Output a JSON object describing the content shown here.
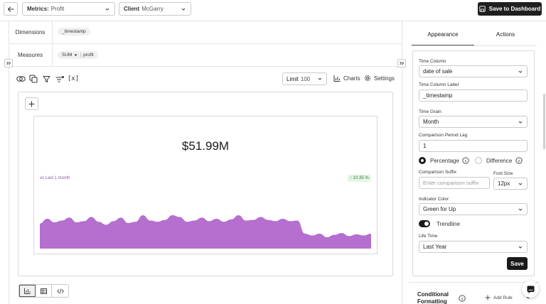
{
  "topbar": {
    "metrics_label": "Metrics:",
    "metrics_value": "Profit",
    "client_label": "Client",
    "client_value": "McGarry",
    "save_dashboard": "Save to Dashboard"
  },
  "query": {
    "dimensions_label": "Dimensions",
    "dimension_chip": "_timestamp",
    "measures_label": "Measures",
    "measure_agg": "SUM",
    "measure_field": "profit"
  },
  "toolbar": {
    "limit_label": "Limit",
    "limit_value": "100",
    "charts_label": "Charts",
    "settings_label": "Settings",
    "variable_icon_text": "[x]"
  },
  "kpi": {
    "value": "$51.99M",
    "comparison_text": "vs Last 1 month",
    "change_text": "10.35 %",
    "trend_color": "#b56fcf",
    "trendline": [
      0.42,
      0.5,
      0.44,
      0.47,
      0.52,
      0.44,
      0.46,
      0.53,
      0.45,
      0.4,
      0.46,
      0.52,
      0.43,
      0.45,
      0.56,
      0.47,
      0.45,
      0.48,
      0.56,
      0.53,
      0.45,
      0.47,
      0.52,
      0.46,
      0.5,
      0.45,
      0.49,
      0.56,
      0.47,
      0.48,
      0.53,
      0.48,
      0.46,
      0.5,
      0.46,
      0.47,
      0.25,
      0.22,
      0.25,
      0.19,
      0.23,
      0.26,
      0.21,
      0.24,
      0.22,
      0.25
    ]
  },
  "panel": {
    "tab_appearance": "Appearance",
    "tab_actions": "Actions",
    "time_column_label": "Time Column",
    "time_column_value": "date of sale",
    "time_column_label_label": "Time Column Label",
    "time_column_label_value": "_timestamp",
    "time_grain_label": "Time Grain",
    "time_grain_value": "Month",
    "comparison_lag_label": "Comparison Period Lag",
    "comparison_lag_value": "1",
    "radio_percentage": "Percentage",
    "radio_difference": "Difference",
    "comparison_suffix_label": "Comparison Suffix",
    "comparison_suffix_placeholder": "Enter comparison suffix",
    "font_size_label": "Font Size",
    "font_size_value": "12px",
    "indicator_color_label": "Indicator Color",
    "indicator_color_value": "Green for Up",
    "trendline_label": "Trendline",
    "life_time_label": "Life Time",
    "life_time_value": "Last Year",
    "save_label": "Save",
    "conditional_formatting_label": "Conditional Formatting",
    "add_rule_label": "Add Rule"
  }
}
